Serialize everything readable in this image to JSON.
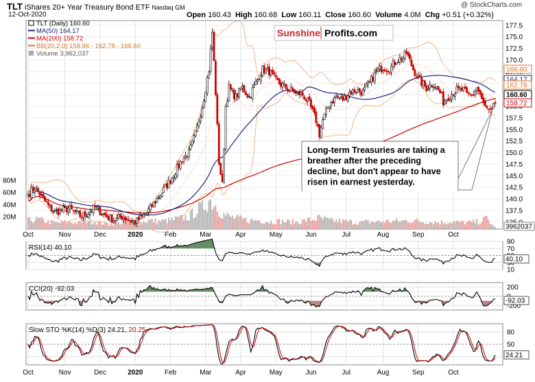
{
  "header": {
    "ticker": "TLT",
    "name": "iShares 20+ Year Treasury Bond ETF",
    "exchange": "Nasdaq GM",
    "date": "12-Oct-2020",
    "open_label": "Open",
    "open": "160.43",
    "high_label": "High",
    "high": "160.68",
    "low_label": "Low",
    "low": "160.11",
    "close_label": "Close",
    "close": "160.60",
    "volume_label": "Volume",
    "volume": "4.0M",
    "chg_label": "Chg",
    "chg": "+0.51 (+0.32%)",
    "watermark": "@ StockCharts.com"
  },
  "logo": {
    "part1": "Sunshine",
    "part2": "Profits.com"
  },
  "legend": [
    {
      "text": "TLT (Daily) 160.60",
      "color": "#000000"
    },
    {
      "text": "MA(50) 164.17",
      "color": "#1a237e"
    },
    {
      "text": "MA(200) 158.72",
      "color": "#cc0000"
    },
    {
      "text": "BB(20,2.0) 158.96 - 162.78 - 166.60",
      "color": "#e07020"
    },
    {
      "text": "Volume 3,962,037",
      "color": "#555555"
    }
  ],
  "annotation": {
    "lines": [
      "Long-term Treasuries are taking a",
      "breather after the preceding",
      "decline, but don't appear to have",
      "risen in earnest yesterday."
    ]
  },
  "panels": {
    "rsi_label": "RSI(14) 40.10",
    "cci_label": "CCI(20) -92.03",
    "sto_label_main": "Slow STO %K(14) %D(3) 24.21,",
    "sto_label_d": "20.25"
  },
  "colors": {
    "up": "#000000",
    "down": "#cc0000",
    "ma50": "#1a237e",
    "ma200": "#cc0000",
    "bb": "#f2b48a",
    "volume": "#b5b5b5",
    "volume_down": "#e7a0a0",
    "oscillator_fill": "#4f7a4f",
    "oscillator_neg": "#a05050"
  },
  "chart_data": {
    "type": "candlestick",
    "x_axis_months": [
      "Oct",
      "Nov",
      "Dec",
      "2020",
      "Feb",
      "Mar",
      "Apr",
      "May",
      "Jun",
      "Jul",
      "Aug",
      "Sep",
      "Oct"
    ],
    "price": {
      "yticks": [
        "177.5",
        "175.0",
        "172.5",
        "170.0",
        "167.5",
        "165.0",
        "162.5",
        "160.0",
        "157.5",
        "155.0",
        "152.5",
        "150.0",
        "147.5",
        "145.0",
        "142.5",
        "140.0",
        "137.5",
        "135.0"
      ],
      "ylim": [
        133.5,
        178.5
      ],
      "volume_ticks": [
        "80M",
        "60M",
        "40M",
        "20M"
      ],
      "last_labels": [
        {
          "value": "166.60",
          "color": "#e07020"
        },
        {
          "value": "164.17",
          "color": "#1a237e"
        },
        {
          "value": "162.78",
          "color": "#e07020"
        },
        {
          "value": "160.60",
          "color": "#000000"
        },
        {
          "value": "158.72",
          "color": "#cc0000"
        }
      ],
      "volume_last": "3962037",
      "close": [
        [
          0,
          141.0
        ],
        [
          4,
          142.5
        ],
        [
          8,
          140.5
        ],
        [
          12,
          138.5
        ],
        [
          16,
          137.2
        ],
        [
          20,
          137.5
        ],
        [
          24,
          138.0
        ],
        [
          28,
          137.0
        ],
        [
          32,
          136.2
        ],
        [
          36,
          137.0
        ],
        [
          40,
          138.2
        ],
        [
          44,
          137.0
        ],
        [
          48,
          136.0
        ],
        [
          52,
          135.5
        ],
        [
          56,
          136.2
        ],
        [
          60,
          135.5
        ],
        [
          64,
          135.0
        ],
        [
          68,
          136.0
        ],
        [
          72,
          137.5
        ],
        [
          76,
          139.5
        ],
        [
          80,
          141.5
        ],
        [
          84,
          143.5
        ],
        [
          88,
          146.0
        ],
        [
          92,
          148.5
        ],
        [
          96,
          150.0
        ],
        [
          100,
          154.0
        ],
        [
          104,
          160.0
        ],
        [
          108,
          168.0
        ],
        [
          110,
          176.0
        ],
        [
          112,
          163.0
        ],
        [
          114,
          148.0
        ],
        [
          116,
          143.0
        ],
        [
          118,
          160.0
        ],
        [
          120,
          164.0
        ],
        [
          124,
          162.0
        ],
        [
          128,
          164.0
        ],
        [
          132,
          162.0
        ],
        [
          136,
          165.0
        ],
        [
          140,
          168.0
        ],
        [
          144,
          167.5
        ],
        [
          148,
          165.5
        ],
        [
          152,
          164.5
        ],
        [
          156,
          163.5
        ],
        [
          160,
          163.0
        ],
        [
          164,
          162.5
        ],
        [
          168,
          160.5
        ],
        [
          172,
          157.0
        ],
        [
          174,
          154.0
        ],
        [
          176,
          157.0
        ],
        [
          180,
          160.5
        ],
        [
          184,
          162.0
        ],
        [
          188,
          161.5
        ],
        [
          192,
          163.0
        ],
        [
          196,
          163.5
        ],
        [
          200,
          163.0
        ],
        [
          204,
          165.0
        ],
        [
          208,
          167.5
        ],
        [
          212,
          168.5
        ],
        [
          216,
          168.0
        ],
        [
          220,
          170.0
        ],
        [
          224,
          170.5
        ],
        [
          226,
          171.5
        ],
        [
          230,
          168.0
        ],
        [
          234,
          165.5
        ],
        [
          238,
          164.0
        ],
        [
          242,
          165.0
        ],
        [
          246,
          163.0
        ],
        [
          248,
          161.0
        ],
        [
          252,
          162.5
        ],
        [
          256,
          163.5
        ],
        [
          260,
          163.5
        ],
        [
          262,
          162.5
        ],
        [
          266,
          162.5
        ],
        [
          268,
          164.0
        ],
        [
          272,
          160.5
        ],
        [
          274,
          159.0
        ],
        [
          276,
          158.5
        ],
        [
          278,
          160.6
        ]
      ],
      "volume_millions": [
        [
          0,
          14
        ],
        [
          6,
          16
        ],
        [
          12,
          12
        ],
        [
          18,
          10
        ],
        [
          24,
          12
        ],
        [
          30,
          10
        ],
        [
          36,
          15
        ],
        [
          42,
          11
        ],
        [
          48,
          8
        ],
        [
          54,
          10
        ],
        [
          60,
          12
        ],
        [
          66,
          11
        ],
        [
          72,
          14
        ],
        [
          78,
          13
        ],
        [
          84,
          14
        ],
        [
          90,
          17
        ],
        [
          96,
          20
        ],
        [
          100,
          30
        ],
        [
          104,
          35
        ],
        [
          108,
          48
        ],
        [
          112,
          40
        ],
        [
          116,
          25
        ],
        [
          120,
          20
        ],
        [
          126,
          17
        ],
        [
          132,
          14
        ],
        [
          138,
          15
        ],
        [
          144,
          12
        ],
        [
          150,
          13
        ],
        [
          156,
          12
        ],
        [
          162,
          12
        ],
        [
          168,
          15
        ],
        [
          174,
          18
        ],
        [
          180,
          14
        ],
        [
          186,
          13
        ],
        [
          192,
          12
        ],
        [
          198,
          11
        ],
        [
          204,
          12
        ],
        [
          210,
          12
        ],
        [
          216,
          13
        ],
        [
          222,
          13
        ],
        [
          228,
          14
        ],
        [
          234,
          13
        ],
        [
          240,
          12
        ],
        [
          246,
          11
        ],
        [
          252,
          12
        ],
        [
          258,
          11
        ],
        [
          264,
          11
        ],
        [
          270,
          12
        ],
        [
          274,
          18
        ],
        [
          278,
          4
        ]
      ]
    },
    "rsi": {
      "label": "RSI(14) 40.10",
      "ticks": [
        "90",
        "70",
        "50",
        "30",
        "10"
      ],
      "last": "40.10",
      "ylim": [
        10,
        90
      ]
    },
    "cci": {
      "label": "CCI(20) -92.03",
      "ticks": [
        "200",
        "0",
        "-200"
      ],
      "last": "-92.03",
      "ylim": [
        -300,
        300
      ]
    },
    "sto": {
      "label": "Slow STO %K(14) %D(3) 24.21, 20.25",
      "ticks": [
        "80",
        "50",
        "20"
      ],
      "last": "24.21",
      "ylim": [
        0,
        100
      ]
    }
  }
}
